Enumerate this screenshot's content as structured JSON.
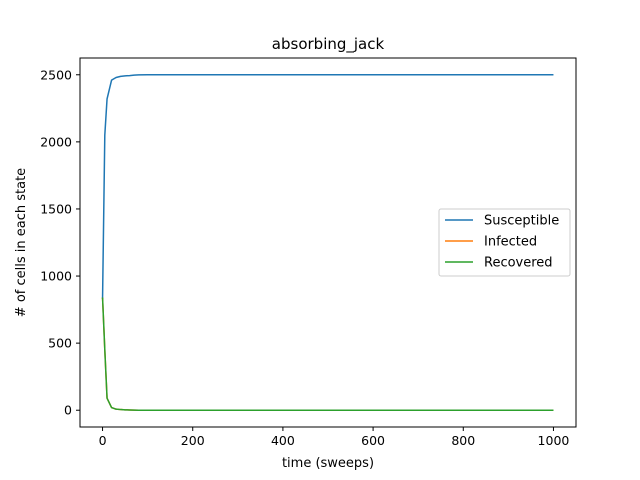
{
  "chart_data": {
    "type": "line",
    "title": "absorbing_jack",
    "xlabel": "time (sweeps)",
    "ylabel": "# of cells in each state",
    "xlim": [
      -50,
      1050
    ],
    "ylim": [
      -125,
      2625
    ],
    "xticks": [
      0,
      200,
      400,
      600,
      800,
      1000
    ],
    "yticks": [
      0,
      500,
      1000,
      1500,
      2000,
      2500
    ],
    "grid": false,
    "legend_position": "center-right",
    "series": [
      {
        "name": "Susceptible",
        "color": "#1f77b4",
        "x": [
          0,
          5,
          10,
          20,
          30,
          40,
          50,
          60,
          70,
          80,
          100,
          200,
          400,
          600,
          800,
          1000
        ],
        "y": [
          830,
          2050,
          2320,
          2460,
          2480,
          2488,
          2492,
          2494,
          2497,
          2499,
          2500,
          2500,
          2500,
          2500,
          2500,
          2500
        ]
      },
      {
        "name": "Infected",
        "color": "#ff7f0e",
        "x": [
          0,
          5,
          10,
          20,
          30,
          40,
          50,
          60,
          70,
          80,
          100,
          200,
          400,
          600,
          800,
          1000
        ],
        "y": [
          840,
          450,
          90,
          20,
          8,
          5,
          3,
          2,
          1,
          0,
          0,
          0,
          0,
          0,
          0,
          0
        ]
      },
      {
        "name": "Recovered",
        "color": "#2ca02c",
        "x": [
          0,
          5,
          10,
          20,
          30,
          40,
          50,
          60,
          70,
          80,
          100,
          200,
          400,
          600,
          800,
          1000
        ],
        "y": [
          840,
          450,
          90,
          20,
          8,
          5,
          3,
          2,
          1,
          0,
          0,
          0,
          0,
          0,
          0,
          0
        ]
      }
    ]
  }
}
